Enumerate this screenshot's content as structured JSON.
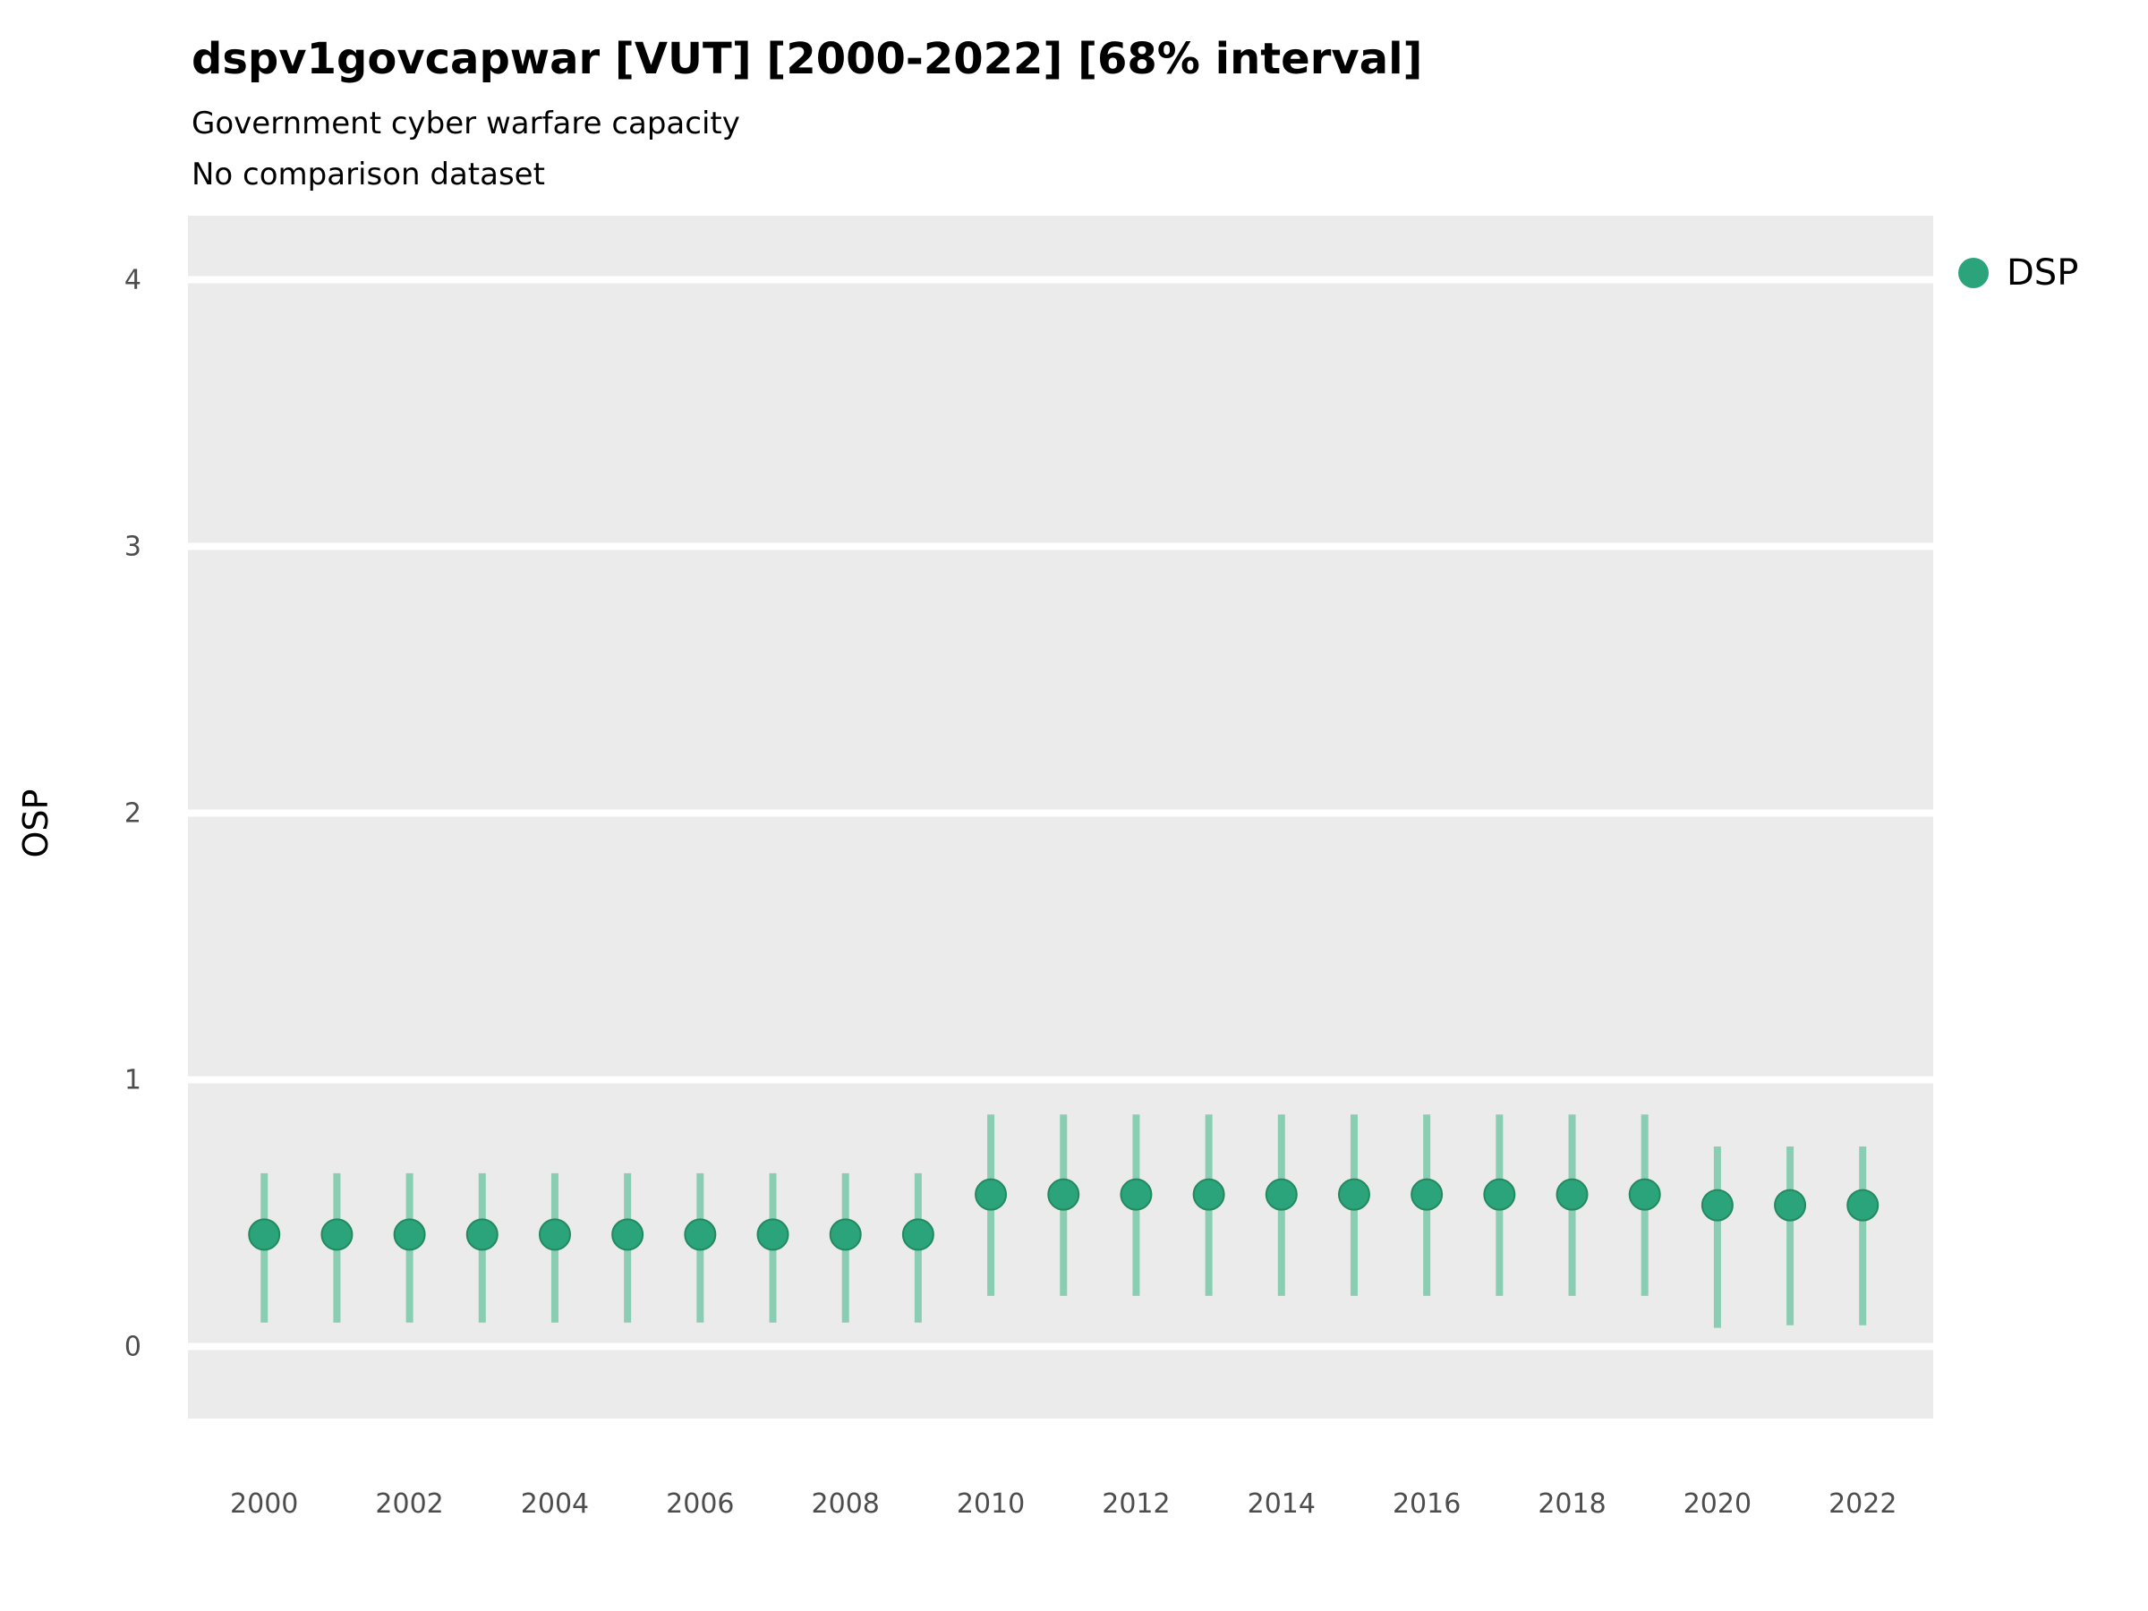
{
  "header": {
    "title": "dspv1govcapwar [VUT] [2000-2022] [68% interval]",
    "subtitle": "Government cyber warfare capacity",
    "note": "No comparison dataset"
  },
  "legend": {
    "label": "DSP"
  },
  "chart_data": {
    "type": "scatter",
    "title": "dspv1govcapwar [VUT] [2000-2022] [68% interval]",
    "subtitle": "Government cyber warfare capacity",
    "note": "No comparison dataset",
    "xlabel": "",
    "ylabel": "OSP",
    "xlim": [
      1998.95,
      2022.97
    ],
    "ylim": [
      -0.27,
      4.24
    ],
    "y_ticks": [
      0,
      1,
      2,
      3,
      4
    ],
    "x_ticks": [
      2000,
      2002,
      2004,
      2006,
      2008,
      2010,
      2012,
      2014,
      2016,
      2018,
      2020,
      2022
    ],
    "grid": true,
    "legend_position": "right",
    "x": [
      2000,
      2001,
      2002,
      2003,
      2004,
      2005,
      2006,
      2007,
      2008,
      2009,
      2010,
      2011,
      2012,
      2013,
      2014,
      2015,
      2016,
      2017,
      2018,
      2019,
      2020,
      2021,
      2022
    ],
    "series": [
      {
        "name": "DSP",
        "values": [
          0.42,
          0.42,
          0.42,
          0.42,
          0.42,
          0.42,
          0.42,
          0.42,
          0.42,
          0.42,
          0.57,
          0.57,
          0.57,
          0.57,
          0.57,
          0.57,
          0.57,
          0.57,
          0.57,
          0.57,
          0.53,
          0.53,
          0.53
        ],
        "interval_low": [
          0.09,
          0.09,
          0.09,
          0.09,
          0.09,
          0.09,
          0.09,
          0.09,
          0.09,
          0.09,
          0.19,
          0.19,
          0.19,
          0.19,
          0.19,
          0.19,
          0.19,
          0.19,
          0.19,
          0.19,
          0.07,
          0.08,
          0.08
        ],
        "interval_high": [
          0.65,
          0.65,
          0.65,
          0.65,
          0.65,
          0.65,
          0.65,
          0.65,
          0.65,
          0.65,
          0.87,
          0.87,
          0.87,
          0.87,
          0.87,
          0.87,
          0.87,
          0.87,
          0.87,
          0.87,
          0.75,
          0.75,
          0.75
        ],
        "interval_label": "68% interval"
      }
    ],
    "colors": {
      "point": "#2BA37B",
      "point_edge": "#23895F",
      "interval": "#84CCAF",
      "panel": "#EBEBEB",
      "grid": "#FFFFFF",
      "tick_label": "#4D4D4D"
    }
  }
}
